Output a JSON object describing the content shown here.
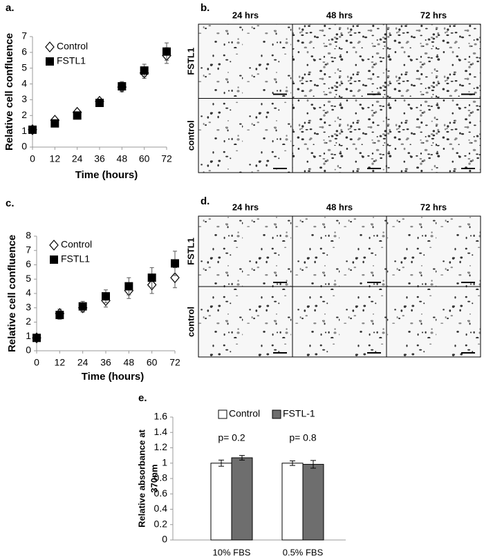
{
  "chart_data": [
    {
      "type": "scatter",
      "title": "a.",
      "x_label": "Time (hours)",
      "y_label": "Relative cell confluence",
      "x": [
        0,
        12,
        24,
        36,
        48,
        60,
        72
      ],
      "xlim": [
        0,
        72
      ],
      "xticks": [
        0,
        12,
        24,
        36,
        48,
        60,
        72
      ],
      "ylim": [
        0,
        7
      ],
      "yticks": [
        0,
        1,
        2,
        3,
        4,
        5,
        6,
        7
      ],
      "series": [
        {
          "name": "Control",
          "color": "#000000",
          "marker": "diamond-open",
          "values": [
            1.1,
            1.7,
            2.2,
            2.9,
            3.8,
            4.7,
            5.8
          ],
          "errors": [
            0.1,
            0.1,
            0.15,
            0.2,
            0.3,
            0.35,
            0.5
          ]
        },
        {
          "name": "FSTL1",
          "color": "#000000",
          "marker": "square",
          "values": [
            1.1,
            1.5,
            2.0,
            2.8,
            3.85,
            4.85,
            6.05
          ],
          "errors": [
            0.1,
            0.1,
            0.1,
            0.2,
            0.3,
            0.4,
            0.55
          ]
        }
      ]
    },
    {
      "type": "scatter",
      "title": "c.",
      "x_label": "Time (hours)",
      "y_label": "Relative cell confluence",
      "x": [
        0,
        12,
        24,
        36,
        48,
        60,
        72
      ],
      "xlim": [
        0,
        72
      ],
      "xticks": [
        0,
        12,
        24,
        36,
        48,
        60,
        72
      ],
      "ylim": [
        0,
        8
      ],
      "yticks": [
        0,
        1,
        2,
        3,
        4,
        5,
        6,
        7,
        8
      ],
      "series": [
        {
          "name": "Control",
          "color": "#000000",
          "marker": "diamond-open",
          "values": [
            0.9,
            2.6,
            3.0,
            3.5,
            4.2,
            4.6,
            5.1
          ],
          "errors": [
            0.15,
            0.3,
            0.3,
            0.45,
            0.55,
            0.6,
            0.7
          ]
        },
        {
          "name": "FSTL1",
          "color": "#000000",
          "marker": "square",
          "values": [
            0.9,
            2.5,
            3.1,
            3.8,
            4.5,
            5.1,
            6.1
          ],
          "errors": [
            0.15,
            0.3,
            0.35,
            0.45,
            0.6,
            0.7,
            0.85
          ]
        }
      ]
    },
    {
      "type": "bar",
      "title": "e.",
      "y_label": [
        "Relative absorbance at",
        "370nm"
      ],
      "categories": [
        "10% FBS",
        "0.5% FBS"
      ],
      "annotations": [
        "p= 0.2",
        "p= 0.8"
      ],
      "ylim": [
        0,
        1.6
      ],
      "yticks": [
        0,
        0.2,
        0.4,
        0.6,
        0.8,
        1,
        1.2,
        1.4,
        1.6
      ],
      "series": [
        {
          "name": "Control",
          "color": "#ffffff",
          "values": [
            1.0,
            1.0
          ],
          "errors": [
            0.04,
            0.03
          ]
        },
        {
          "name": "FSTL-1",
          "color": "#6e6e6e",
          "values": [
            1.07,
            0.985
          ],
          "errors": [
            0.03,
            0.05
          ]
        }
      ]
    }
  ],
  "image_panels": [
    {
      "label": "b.",
      "columns": [
        "24 hrs",
        "48 hrs",
        "72 hrs"
      ],
      "rows": [
        "FSTL1",
        "control"
      ]
    },
    {
      "label": "d.",
      "columns": [
        "24 hrs",
        "48 hrs",
        "72 hrs"
      ],
      "rows": [
        "FSTL1",
        "control"
      ]
    }
  ]
}
